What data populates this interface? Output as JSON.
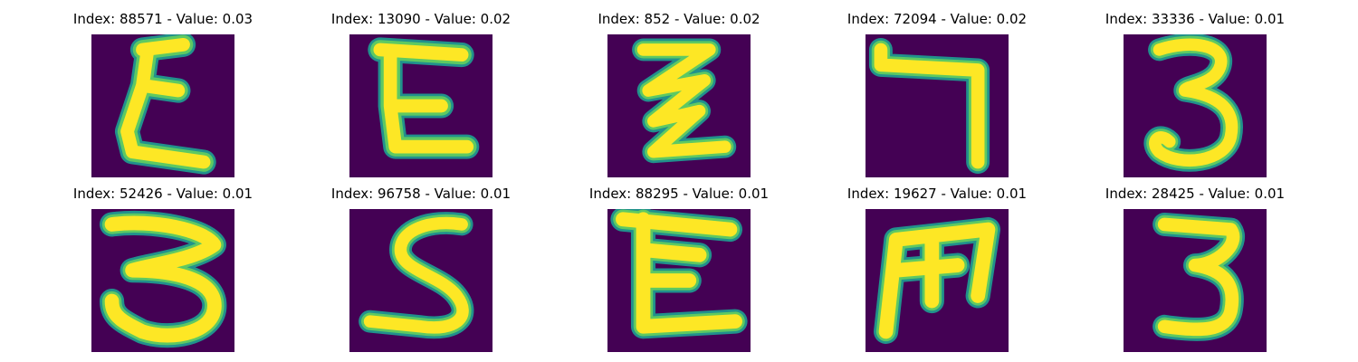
{
  "figure": {
    "colors": {
      "background": "#440154",
      "stroke_core": "#fde725",
      "stroke_mid": "#5ec962",
      "stroke_edge": "#21918c"
    },
    "panels": [
      {
        "index": 88571,
        "value": 0.03,
        "title": "Index: 88571 - Value: 0.03",
        "glyph": "E-like"
      },
      {
        "index": 13090,
        "value": 0.02,
        "title": "Index: 13090 - Value: 0.02",
        "glyph": "E-like"
      },
      {
        "index": 852,
        "value": 0.02,
        "title": "Index: 852 - Value: 0.02",
        "glyph": "zigzag"
      },
      {
        "index": 72094,
        "value": 0.02,
        "title": "Index: 72094 - Value: 0.02",
        "glyph": "7-like"
      },
      {
        "index": 33336,
        "value": 0.01,
        "title": "Index: 33336 - Value: 0.01",
        "glyph": "3"
      },
      {
        "index": 52426,
        "value": 0.01,
        "title": "Index: 52426 - Value: 0.01",
        "glyph": "3"
      },
      {
        "index": 96758,
        "value": 0.01,
        "title": "Index: 96758 - Value: 0.01",
        "glyph": "S"
      },
      {
        "index": 88295,
        "value": 0.01,
        "title": "Index: 88295 - Value: 0.01",
        "glyph": "E-like"
      },
      {
        "index": 19627,
        "value": 0.01,
        "title": "Index: 19627 - Value: 0.01",
        "glyph": "m"
      },
      {
        "index": 28425,
        "value": 0.01,
        "title": "Index: 28425 - Value: 0.01",
        "glyph": "3"
      }
    ]
  }
}
